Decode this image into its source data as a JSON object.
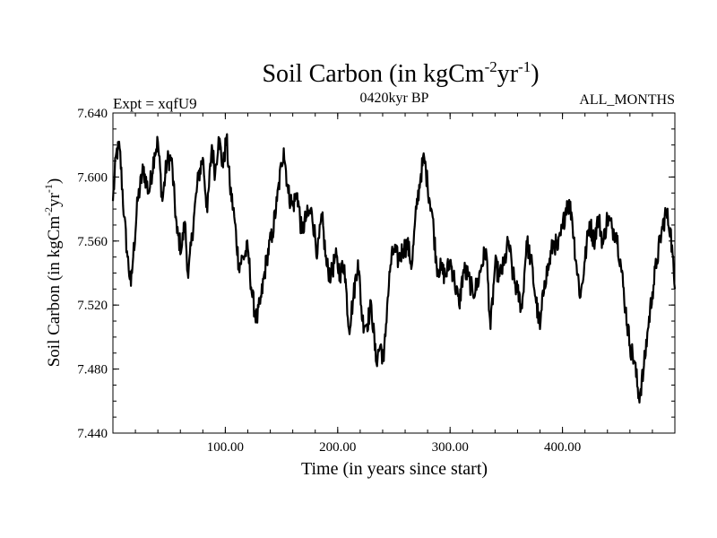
{
  "chart_data": {
    "type": "line",
    "title": {
      "base": "Soil Carbon (in kgCm",
      "sup1": "-2",
      "mid": "yr",
      "sup2": "-1",
      "close": ")"
    },
    "subtitle_left": "Expt = xqfU9",
    "subtitle_center": "0420kyr BP",
    "subtitle_right": "ALL_MONTHS",
    "xlabel": "Time (in years since start)",
    "ylabel": {
      "base": "Soil Carbon (in kgCm",
      "sup1": "-2",
      "mid": "yr",
      "sup2": "-1",
      "close": ")"
    },
    "xlim": [
      0,
      500
    ],
    "ylim": [
      7.44,
      7.64
    ],
    "x_ticks": [
      100,
      200,
      300,
      400
    ],
    "x_tick_labels": [
      "100.00",
      "200.00",
      "300.00",
      "400.00"
    ],
    "y_ticks": [
      7.44,
      7.48,
      7.52,
      7.56,
      7.6,
      7.64
    ],
    "y_tick_labels": [
      "7.440",
      "7.480",
      "7.520",
      "7.560",
      "7.600",
      "7.640"
    ],
    "series": [
      {
        "name": "Soil Carbon",
        "color": "#000000",
        "x": [
          0,
          3,
          6,
          10,
          13,
          16,
          18,
          22,
          27,
          32,
          37,
          40,
          44,
          48,
          52,
          57,
          61,
          64,
          67,
          72,
          76,
          80,
          84,
          88,
          91,
          94,
          98,
          101,
          104,
          108,
          112,
          116,
          120,
          124,
          128,
          132,
          137,
          142,
          146,
          150,
          152,
          156,
          160,
          164,
          168,
          172,
          177,
          182,
          186,
          190,
          194,
          198,
          202,
          206,
          210,
          214,
          218,
          222,
          226,
          230,
          234,
          238,
          241,
          244,
          247,
          250,
          254,
          258,
          262,
          266,
          270,
          274,
          277,
          280,
          284,
          288,
          292,
          296,
          300,
          304,
          308,
          312,
          316,
          320,
          324,
          328,
          332,
          336,
          340,
          344,
          348,
          352,
          356,
          360,
          364,
          368,
          372,
          376,
          380,
          384,
          388,
          392,
          396,
          400,
          404,
          408,
          412,
          416,
          420,
          424,
          428,
          432,
          436,
          440,
          444,
          448,
          452,
          456,
          460,
          464,
          468,
          472,
          476,
          480,
          484,
          488,
          492,
          496,
          500
        ],
        "y": [
          7.585,
          7.615,
          7.618,
          7.575,
          7.55,
          7.532,
          7.55,
          7.585,
          7.605,
          7.59,
          7.615,
          7.622,
          7.585,
          7.61,
          7.612,
          7.565,
          7.555,
          7.572,
          7.537,
          7.575,
          7.6,
          7.612,
          7.578,
          7.62,
          7.602,
          7.625,
          7.606,
          7.625,
          7.595,
          7.575,
          7.545,
          7.55,
          7.555,
          7.525,
          7.51,
          7.525,
          7.55,
          7.565,
          7.585,
          7.608,
          7.618,
          7.59,
          7.582,
          7.59,
          7.565,
          7.575,
          7.578,
          7.552,
          7.575,
          7.545,
          7.538,
          7.55,
          7.54,
          7.545,
          7.505,
          7.525,
          7.548,
          7.51,
          7.508,
          7.52,
          7.485,
          7.495,
          7.485,
          7.52,
          7.545,
          7.555,
          7.548,
          7.555,
          7.558,
          7.545,
          7.58,
          7.602,
          7.612,
          7.595,
          7.578,
          7.545,
          7.542,
          7.538,
          7.548,
          7.535,
          7.52,
          7.542,
          7.538,
          7.528,
          7.532,
          7.545,
          7.555,
          7.505,
          7.545,
          7.538,
          7.545,
          7.56,
          7.538,
          7.528,
          7.518,
          7.56,
          7.548,
          7.525,
          7.505,
          7.535,
          7.545,
          7.56,
          7.555,
          7.568,
          7.585,
          7.578,
          7.548,
          7.525,
          7.548,
          7.572,
          7.56,
          7.575,
          7.558,
          7.575,
          7.568,
          7.565,
          7.545,
          7.518,
          7.495,
          7.485,
          7.462,
          7.478,
          7.505,
          7.528,
          7.548,
          7.565,
          7.578,
          7.568,
          7.53
        ]
      }
    ]
  }
}
